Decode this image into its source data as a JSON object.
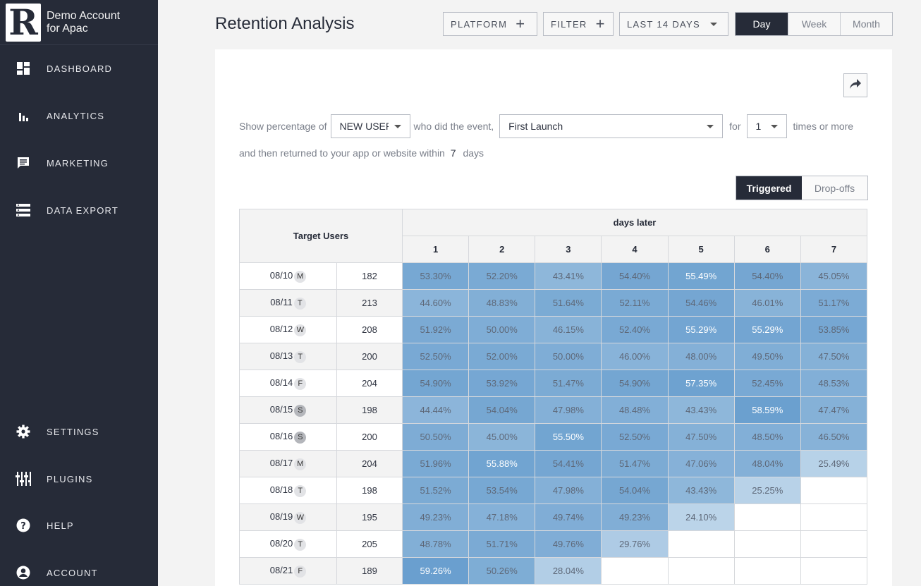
{
  "sidebar": {
    "brand": {
      "logo_letter": "R",
      "line1": "Demo Account",
      "line2": "for Apac"
    },
    "items": [
      {
        "label": "DASHBOARD",
        "icon": "dashboard-icon"
      },
      {
        "label": "ANALYTICS",
        "icon": "bar-chart-icon"
      },
      {
        "label": "MARKETING",
        "icon": "chat-icon"
      },
      {
        "label": "DATA EXPORT",
        "icon": "database-icon"
      }
    ],
    "bottom_items": [
      {
        "label": "SETTINGS",
        "icon": "gear-icon"
      },
      {
        "label": "PLUGINS",
        "icon": "sliders-icon"
      },
      {
        "label": "HELP",
        "icon": "help-icon"
      },
      {
        "label": "ACCOUNT",
        "icon": "account-icon"
      }
    ]
  },
  "header": {
    "title": "Retention Analysis",
    "platform_label": "PLATFORM",
    "filter_label": "FILTER",
    "range_label": "LAST 14 DAYS",
    "granularity": [
      "Day",
      "Week",
      "Month"
    ],
    "granularity_selected": "Day"
  },
  "query": {
    "show_pct_label": "Show percentage of",
    "user_type": "NEW USER",
    "did_event_label": "who did the event,",
    "event": "First Launch",
    "for_label": "for",
    "times": "1",
    "times_suffix": "times or more",
    "returned_label": "and then returned to your app or website within",
    "days_value": "7",
    "days_label": "days"
  },
  "view_toggle": {
    "triggered": "Triggered",
    "dropoffs": "Drop-offs",
    "selected": "Triggered"
  },
  "table": {
    "target_header": "Target Users",
    "days_header": "days later",
    "day_columns": [
      "1",
      "2",
      "3",
      "4",
      "5",
      "6",
      "7"
    ],
    "rows": [
      {
        "date": "08/10",
        "dow": "M",
        "users": "182",
        "values": [
          "53.30%",
          "52.20%",
          "43.41%",
          "54.40%",
          "55.49%",
          "54.40%",
          "45.05%"
        ]
      },
      {
        "date": "08/11",
        "dow": "T",
        "users": "213",
        "values": [
          "44.60%",
          "48.83%",
          "51.64%",
          "52.11%",
          "54.46%",
          "46.01%",
          "51.17%"
        ]
      },
      {
        "date": "08/12",
        "dow": "W",
        "users": "208",
        "values": [
          "51.92%",
          "50.00%",
          "46.15%",
          "52.40%",
          "55.29%",
          "55.29%",
          "53.85%"
        ]
      },
      {
        "date": "08/13",
        "dow": "T",
        "users": "200",
        "values": [
          "52.50%",
          "52.00%",
          "50.00%",
          "46.00%",
          "48.00%",
          "49.50%",
          "47.50%"
        ]
      },
      {
        "date": "08/14",
        "dow": "F",
        "users": "204",
        "values": [
          "54.90%",
          "53.92%",
          "51.47%",
          "54.90%",
          "57.35%",
          "52.45%",
          "48.53%"
        ]
      },
      {
        "date": "08/15",
        "dow": "S",
        "users": "198",
        "values": [
          "44.44%",
          "54.04%",
          "47.98%",
          "48.48%",
          "43.43%",
          "58.59%",
          "47.47%"
        ]
      },
      {
        "date": "08/16",
        "dow": "S",
        "users": "200",
        "values": [
          "50.50%",
          "45.00%",
          "55.50%",
          "52.50%",
          "47.50%",
          "48.50%",
          "46.50%"
        ]
      },
      {
        "date": "08/17",
        "dow": "M",
        "users": "204",
        "values": [
          "51.96%",
          "55.88%",
          "54.41%",
          "51.47%",
          "47.06%",
          "48.04%",
          "25.49%"
        ]
      },
      {
        "date": "08/18",
        "dow": "T",
        "users": "198",
        "values": [
          "51.52%",
          "53.54%",
          "47.98%",
          "54.04%",
          "43.43%",
          "25.25%"
        ]
      },
      {
        "date": "08/19",
        "dow": "W",
        "users": "195",
        "values": [
          "49.23%",
          "47.18%",
          "49.74%",
          "49.23%",
          "24.10%"
        ]
      },
      {
        "date": "08/20",
        "dow": "T",
        "users": "205",
        "values": [
          "48.78%",
          "51.71%",
          "49.76%",
          "29.76%"
        ]
      },
      {
        "date": "08/21",
        "dow": "F",
        "users": "189",
        "values": [
          "59.26%",
          "50.26%",
          "28.04%"
        ]
      }
    ]
  }
}
